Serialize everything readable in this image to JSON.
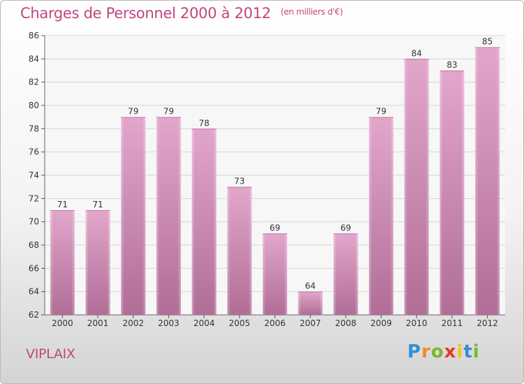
{
  "title": "Charges de Personnel 2000 à 2012",
  "subtitle": "(en milliers d'€)",
  "location": "VIPLAIX",
  "logo": {
    "text": "Proxiti",
    "letters": [
      "P",
      "r",
      "o",
      "x",
      "i",
      "t",
      "i"
    ],
    "colors": [
      "#2f8fd8",
      "#f08a1d",
      "#79b82e",
      "#e8382f",
      "#f0c419",
      "#2f8fd8",
      "#79b82e"
    ]
  },
  "chart_data": {
    "type": "bar",
    "categories": [
      "2000",
      "2001",
      "2002",
      "2003",
      "2004",
      "2005",
      "2006",
      "2007",
      "2008",
      "2009",
      "2010",
      "2011",
      "2012"
    ],
    "values": [
      71,
      71,
      79,
      79,
      78,
      73,
      69,
      64,
      69,
      79,
      84,
      83,
      85
    ],
    "ylim": [
      62,
      86
    ],
    "yticks": [
      62,
      64,
      66,
      68,
      70,
      72,
      74,
      76,
      78,
      80,
      82,
      84,
      86
    ],
    "grid": true,
    "bar_color": "#d88cb9"
  }
}
